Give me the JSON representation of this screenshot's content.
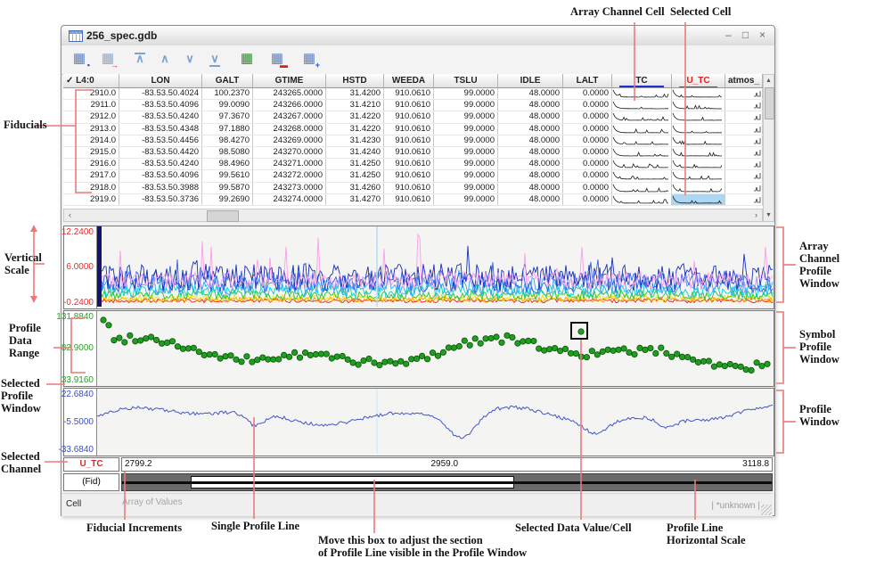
{
  "window": {
    "title": "256_spec.gdb",
    "controls": [
      "–",
      "□",
      "×"
    ]
  },
  "toolbar": [
    {
      "name": "save-table",
      "glyph": "▦",
      "color": "#5b7fbe",
      "badge": "▪",
      "badge_color": "#2a4fd0"
    },
    {
      "name": "refresh-table",
      "glyph": "▦",
      "color": "#8fa6c4",
      "badge": "→",
      "badge_color": "#c82222"
    },
    {
      "name": "first-row",
      "glyph": "∧",
      "color": "#7ba3cf",
      "bar": "top"
    },
    {
      "name": "previous-row",
      "glyph": "∧",
      "color": "#7ba3cf"
    },
    {
      "name": "next-row",
      "glyph": "∨",
      "color": "#7ba3cf"
    },
    {
      "name": "last-row",
      "glyph": "∨",
      "color": "#7ba3cf",
      "bar": "bottom"
    },
    {
      "name": "table-stats",
      "glyph": "▦",
      "color": "#2e8b2e"
    },
    {
      "name": "table-edit",
      "glyph": "▦",
      "color": "#5b7fbe",
      "badge": "▬",
      "badge_color": "#c82222"
    },
    {
      "name": "table-windows",
      "glyph": "▦",
      "color": "#5b7fbe",
      "badge": "+",
      "badge_color": "#2a4fd0"
    }
  ],
  "table": {
    "header_check": "✓",
    "columns": [
      "L4:0",
      "LON",
      "GALT",
      "GTIME",
      "HSTD",
      "WEEDA",
      "TSLU",
      "IDLE",
      "LALT",
      "TC",
      "U_TC",
      "atmos_"
    ],
    "selected_row": 9,
    "rows": [
      [
        "2910.0",
        "-83.53.50.4024",
        "100.2370",
        "243265.0000",
        "31.4200",
        "910.0610",
        "99.0000",
        "48.0000",
        "0.0000"
      ],
      [
        "2911.0",
        "-83.53.50.4096",
        "99.0090",
        "243266.0000",
        "31.4210",
        "910.0610",
        "99.0000",
        "48.0000",
        "0.0000"
      ],
      [
        "2912.0",
        "-83.53.50.4240",
        "97.3670",
        "243267.0000",
        "31.4220",
        "910.0610",
        "99.0000",
        "48.0000",
        "0.0000"
      ],
      [
        "2913.0",
        "-83.53.50.4348",
        "97.1880",
        "243268.0000",
        "31.4220",
        "910.0610",
        "99.0000",
        "48.0000",
        "0.0000"
      ],
      [
        "2914.0",
        "-83.53.50.4456",
        "98.4270",
        "243269.0000",
        "31.4230",
        "910.0610",
        "99.0000",
        "48.0000",
        "0.0000"
      ],
      [
        "2915.0",
        "-83.53.50.4420",
        "98.5080",
        "243270.0000",
        "31.4240",
        "910.0610",
        "99.0000",
        "48.0000",
        "0.0000"
      ],
      [
        "2916.0",
        "-83.53.50.4240",
        "98.4960",
        "243271.0000",
        "31.4250",
        "910.0610",
        "99.0000",
        "48.0000",
        "0.0000"
      ],
      [
        "2917.0",
        "-83.53.50.4096",
        "99.5610",
        "243272.0000",
        "31.4250",
        "910.0610",
        "99.0000",
        "48.0000",
        "0.0000"
      ],
      [
        "2918.0",
        "-83.53.50.3988",
        "99.5870",
        "243273.0000",
        "31.4260",
        "910.0610",
        "99.0000",
        "48.0000",
        "0.0000"
      ],
      [
        "2919.0",
        "-83.53.50.3736",
        "99.2690",
        "243274.0000",
        "31.4270",
        "910.0610",
        "99.0000",
        "48.0000",
        "0.0000"
      ]
    ]
  },
  "profiles": {
    "array_scale": [
      "12.2400",
      "6.0000",
      "-0.2400"
    ],
    "symbol_scale": [
      "131.8840",
      "82.9000",
      "33.9160"
    ],
    "line_scale": [
      "22.6840",
      "-5.5000",
      "-33.6840"
    ]
  },
  "footer": {
    "channel": "U_TC",
    "fid": "(Fid)",
    "hscale": [
      "2799.2",
      "2959.0",
      "3118.8"
    ],
    "cell_label": "Cell",
    "cell_value": "Array of Values",
    "status_right": "| *unknown  |"
  },
  "annotations": {
    "array_channel_cell": "Array Channel Cell",
    "selected_cell": "Selected Cell",
    "fiducials": "Fiducials",
    "vertical_scale": "Vertical\nScale",
    "profile_data_range": "Profile\nData\nRange",
    "selected_profile_window": "Selected\nProfile\nWindow",
    "selected_channel": "Selected\nChannel",
    "array_channel_profile_window": "Array\nChannel\nProfile\nWindow",
    "symbol_profile_window": "Symbol\nProfile\nWindow",
    "profile_window": "Profile\nWindow",
    "fiducial_increments": "Fiducial Increments",
    "single_profile_line": "Single Profile Line",
    "move_box": "Move this box to adjust the section\nof Profile Line visible in the Profile Window",
    "selected_data_value": "Selected Data Value/Cell",
    "profile_line_horizontal_scale": "Profile Line\nHorizontal Scale"
  },
  "colors": {
    "callout": "#ea7a7a",
    "scale_red": "#e22e2e",
    "scale_green": "#28a128",
    "scale_blue": "#3b4fc8",
    "selected_cell_bg": "#aed6f0",
    "tc_underline": "#2230cc",
    "channel_red": "#d42a2a",
    "symbol_dot": "#1f9e1f",
    "profile_line": "#4356c4",
    "series": [
      "#e82020",
      "#ff8c00",
      "#efe000",
      "#2dc22d",
      "#00cfd0",
      "#32a5f5",
      "#2f5fe8",
      "#1b2fb8",
      "#ff9ce8"
    ]
  }
}
